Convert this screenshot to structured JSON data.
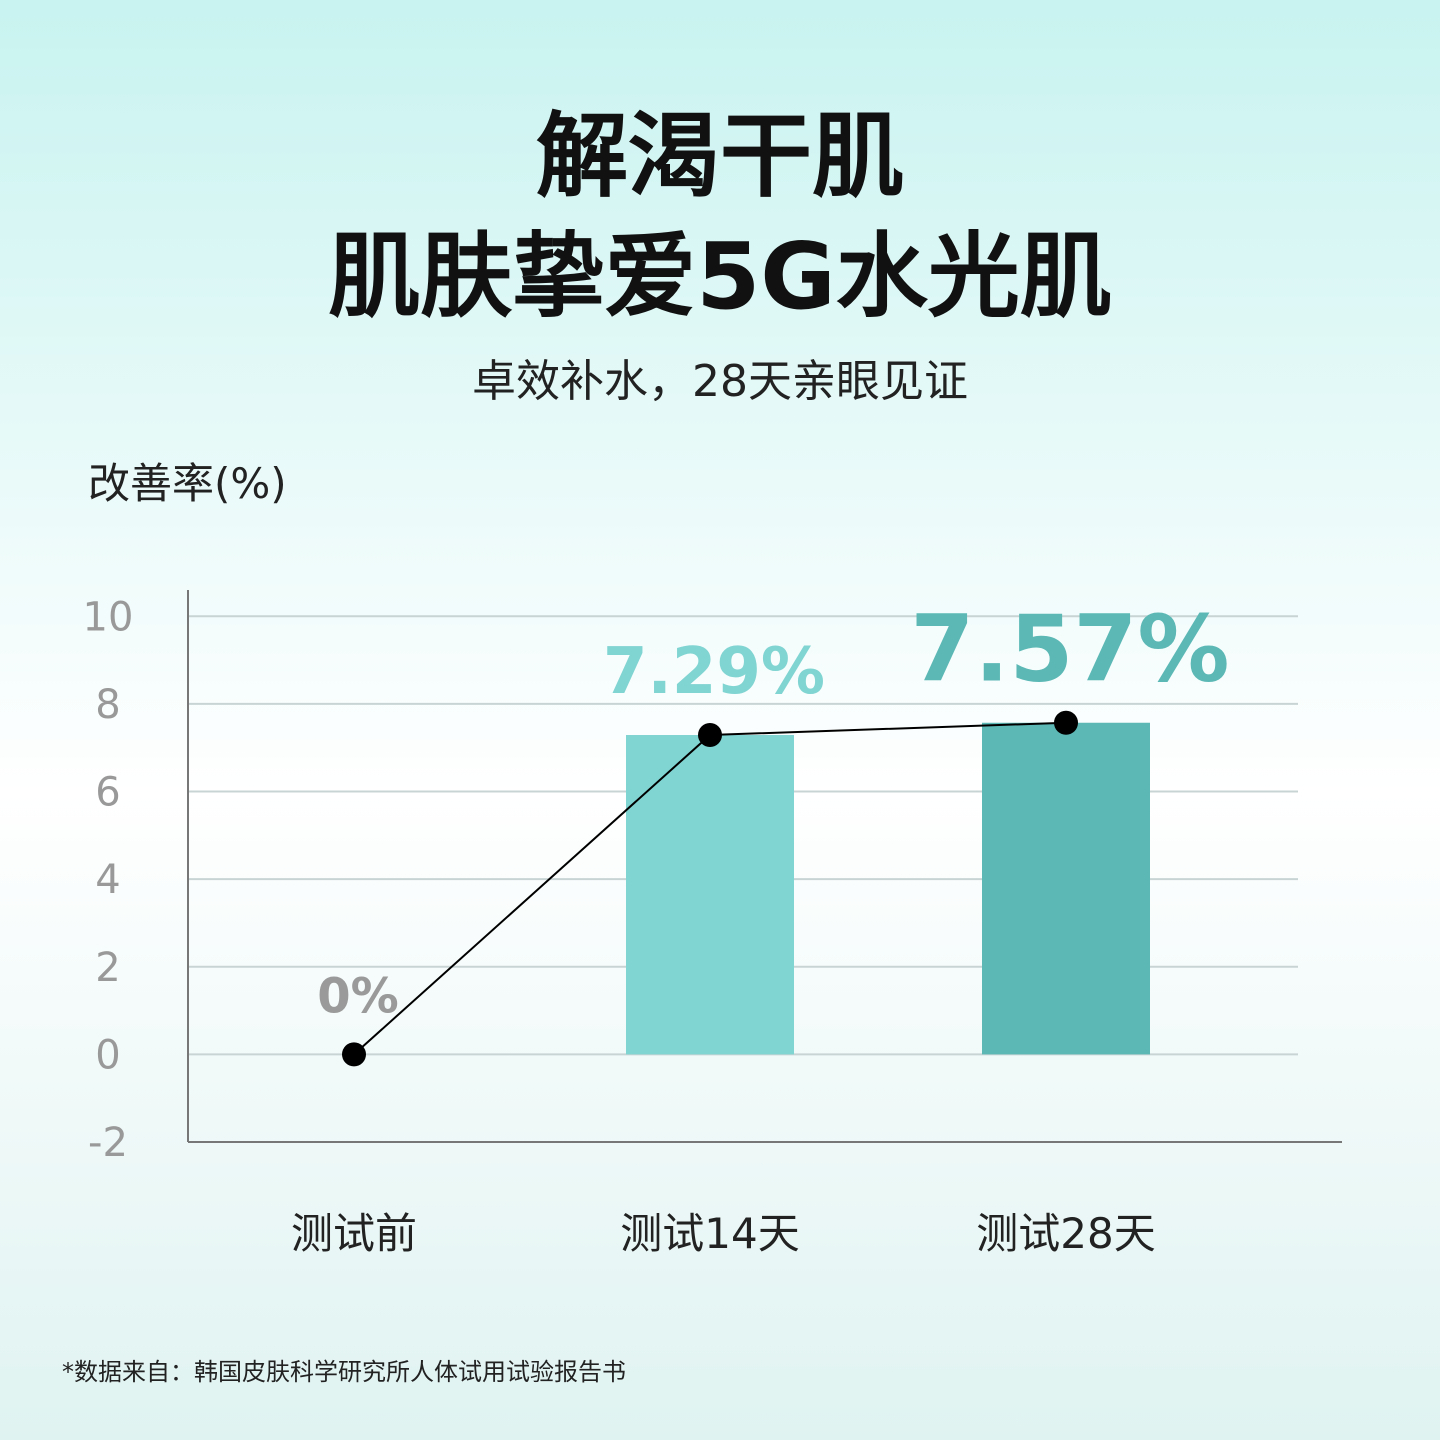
{
  "chart_data": {
    "type": "bar",
    "title": "解渴干肌",
    "subtitle": "肌肤挚爱5G水光肌",
    "tagline": "卓效补水，28天亲眼见证",
    "y_label": "改善率(%)",
    "categories": [
      "测试前",
      "测试14天",
      "测试28天"
    ],
    "values": [
      0,
      7.29,
      7.57
    ],
    "value_labels": [
      "0%",
      "7.29%",
      "7.57%"
    ],
    "colors": [
      "#b3ecdc",
      "#80d4d2",
      "#5bb8b5"
    ],
    "label_colors": [
      "#9a9a9a",
      "#80d4d2",
      "#5bb8b5"
    ],
    "line": true,
    "line_color": "#000000",
    "ylim": [
      -2,
      10.6
    ],
    "yticks": [
      -2,
      0,
      2,
      4,
      6,
      8,
      10
    ],
    "grid": true,
    "footnote": "*数据来自：韩国皮肤科学研究所人体试用试验报告书"
  }
}
